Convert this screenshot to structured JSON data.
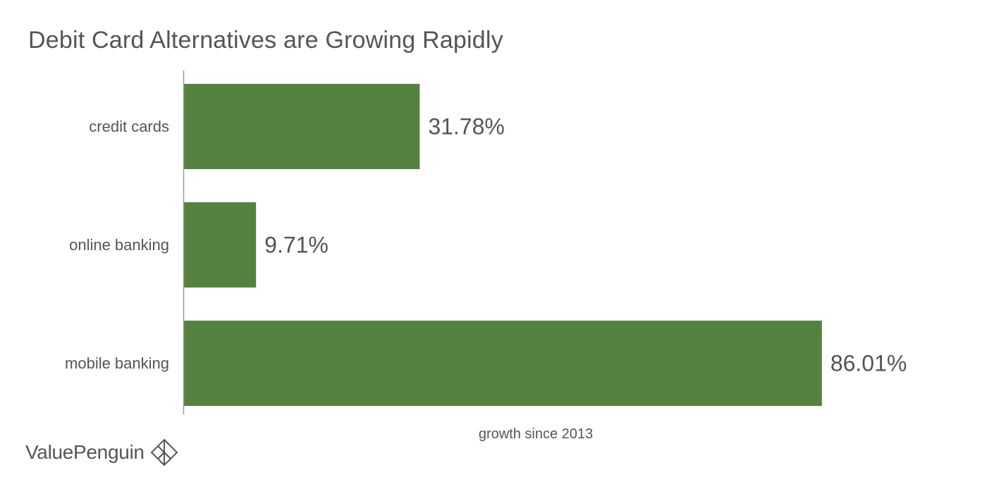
{
  "chart_data": {
    "type": "bar",
    "orientation": "horizontal",
    "title": "Debit Card Alternatives are Growing Rapidly",
    "xlabel": "growth since 2013",
    "ylabel": "",
    "categories": [
      "credit cards",
      "online banking",
      "mobile banking"
    ],
    "values": [
      31.78,
      9.71,
      86.01
    ],
    "data_labels": [
      "31.78%",
      "9.71%",
      "86.01%"
    ],
    "xlim": [
      0,
      100
    ],
    "grid": false,
    "legend": "none",
    "bar_color": "#568240"
  },
  "brand": {
    "name": "ValuePenguin",
    "logo_icon": "valuepenguin-logo-icon"
  },
  "colors": {
    "text": "#555555",
    "axis": "#999999",
    "bar": "#568240"
  }
}
